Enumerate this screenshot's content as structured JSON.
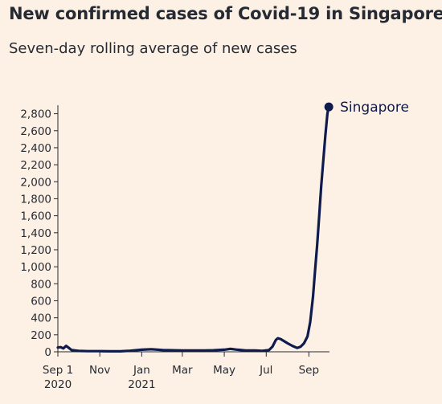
{
  "chart_data": {
    "type": "line",
    "title": "New confirmed cases of Covid-19 in Singapore",
    "subtitle": "Seven-day rolling average of new cases",
    "xlabel": "",
    "ylabel": "",
    "ylim": [
      0,
      2900
    ],
    "yticks": [
      0,
      200,
      400,
      600,
      800,
      1000,
      1200,
      1400,
      1600,
      1800,
      2000,
      2200,
      2400,
      2600,
      2800
    ],
    "ytick_labels": [
      "0",
      "200",
      "400",
      "600",
      "800",
      "1,000",
      "1,200",
      "1,400",
      "1,600",
      "1,800",
      "2,000",
      "2,200",
      "2,400",
      "2,600",
      "2,800"
    ],
    "xlim": [
      "2020-09-01",
      "2021-10-01"
    ],
    "xticks": [
      {
        "date": "2020-09-01",
        "label": "Sep 1",
        "sublabel": "2020"
      },
      {
        "date": "2020-11-01",
        "label": "Nov",
        "sublabel": ""
      },
      {
        "date": "2021-01-01",
        "label": "Jan",
        "sublabel": "2021"
      },
      {
        "date": "2021-03-01",
        "label": "Mar",
        "sublabel": ""
      },
      {
        "date": "2021-05-01",
        "label": "May",
        "sublabel": ""
      },
      {
        "date": "2021-07-01",
        "label": "Jul",
        "sublabel": ""
      },
      {
        "date": "2021-09-01",
        "label": "Sep",
        "sublabel": ""
      }
    ],
    "grid": false,
    "series": [
      {
        "name": "Singapore",
        "color": "#0f1a4d",
        "x": [
          "2020-09-01",
          "2020-09-05",
          "2020-09-09",
          "2020-09-13",
          "2020-09-17",
          "2020-09-21",
          "2020-10-01",
          "2020-10-15",
          "2020-11-01",
          "2020-11-15",
          "2020-12-01",
          "2020-12-15",
          "2021-01-01",
          "2021-01-15",
          "2021-02-01",
          "2021-02-15",
          "2021-03-01",
          "2021-03-15",
          "2021-04-01",
          "2021-04-15",
          "2021-05-01",
          "2021-05-10",
          "2021-05-20",
          "2021-06-01",
          "2021-06-15",
          "2021-06-25",
          "2021-07-05",
          "2021-07-10",
          "2021-07-15",
          "2021-07-18",
          "2021-07-22",
          "2021-07-26",
          "2021-08-01",
          "2021-08-08",
          "2021-08-15",
          "2021-08-20",
          "2021-08-25",
          "2021-08-30",
          "2021-09-03",
          "2021-09-07",
          "2021-09-10",
          "2021-09-13",
          "2021-09-16",
          "2021-09-19",
          "2021-09-22",
          "2021-09-25",
          "2021-09-28",
          "2021-09-30"
        ],
        "values": [
          50,
          55,
          40,
          70,
          45,
          20,
          10,
          8,
          8,
          6,
          6,
          12,
          25,
          30,
          20,
          18,
          15,
          15,
          15,
          18,
          25,
          35,
          25,
          15,
          15,
          10,
          20,
          60,
          140,
          160,
          150,
          130,
          100,
          70,
          45,
          60,
          100,
          180,
          350,
          650,
          950,
          1250,
          1600,
          1950,
          2250,
          2550,
          2800,
          2880
        ]
      }
    ]
  }
}
